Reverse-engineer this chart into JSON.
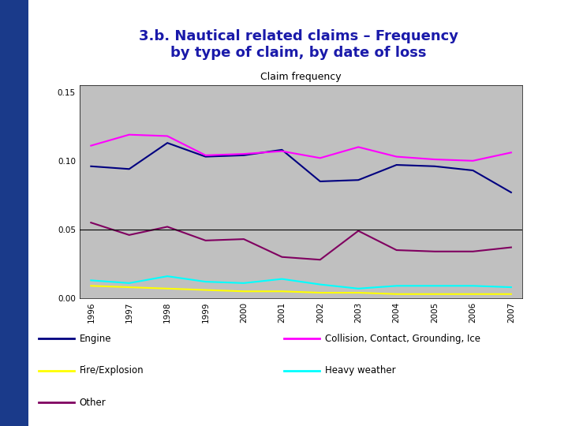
{
  "title": "3.b. Nautical related claims – Frequency\nby type of claim, by date of loss",
  "chart_title": "Claim frequency",
  "title_color": "#1a1aaa",
  "years": [
    1996,
    1997,
    1998,
    1999,
    2000,
    2001,
    2002,
    2003,
    2004,
    2005,
    2006,
    2007
  ],
  "engine": [
    0.096,
    0.094,
    0.113,
    0.103,
    0.104,
    0.108,
    0.085,
    0.086,
    0.097,
    0.096,
    0.093,
    0.077
  ],
  "fire": [
    0.009,
    0.008,
    0.007,
    0.006,
    0.005,
    0.005,
    0.004,
    0.004,
    0.003,
    0.003,
    0.003,
    0.003
  ],
  "other": [
    0.055,
    0.046,
    0.052,
    0.042,
    0.043,
    0.03,
    0.028,
    0.049,
    0.035,
    0.034,
    0.034,
    0.037
  ],
  "collision": [
    0.111,
    0.119,
    0.118,
    0.104,
    0.105,
    0.107,
    0.102,
    0.11,
    0.103,
    0.101,
    0.1,
    0.106
  ],
  "heavy": [
    0.013,
    0.011,
    0.016,
    0.012,
    0.011,
    0.014,
    0.01,
    0.007,
    0.009,
    0.009,
    0.009,
    0.008
  ],
  "engine_color": "#000080",
  "fire_color": "#ffff00",
  "other_color": "#800060",
  "collision_color": "#ff00ff",
  "heavy_color": "#00ffff",
  "plot_bg": "#c0c0c0",
  "ylim": [
    0.0,
    0.155
  ],
  "yticks": [
    0.0,
    0.05,
    0.1,
    0.15
  ],
  "hline_y": 0.05,
  "legend_engine": "Engine",
  "legend_fire": "Fire/Explosion",
  "legend_other": "Other",
  "legend_collision": "Collision, Contact, Grounding, Ice",
  "legend_heavy": "Heavy weather",
  "left_strip_color": "#1a3a8a",
  "fig_bg": "#ffffff"
}
